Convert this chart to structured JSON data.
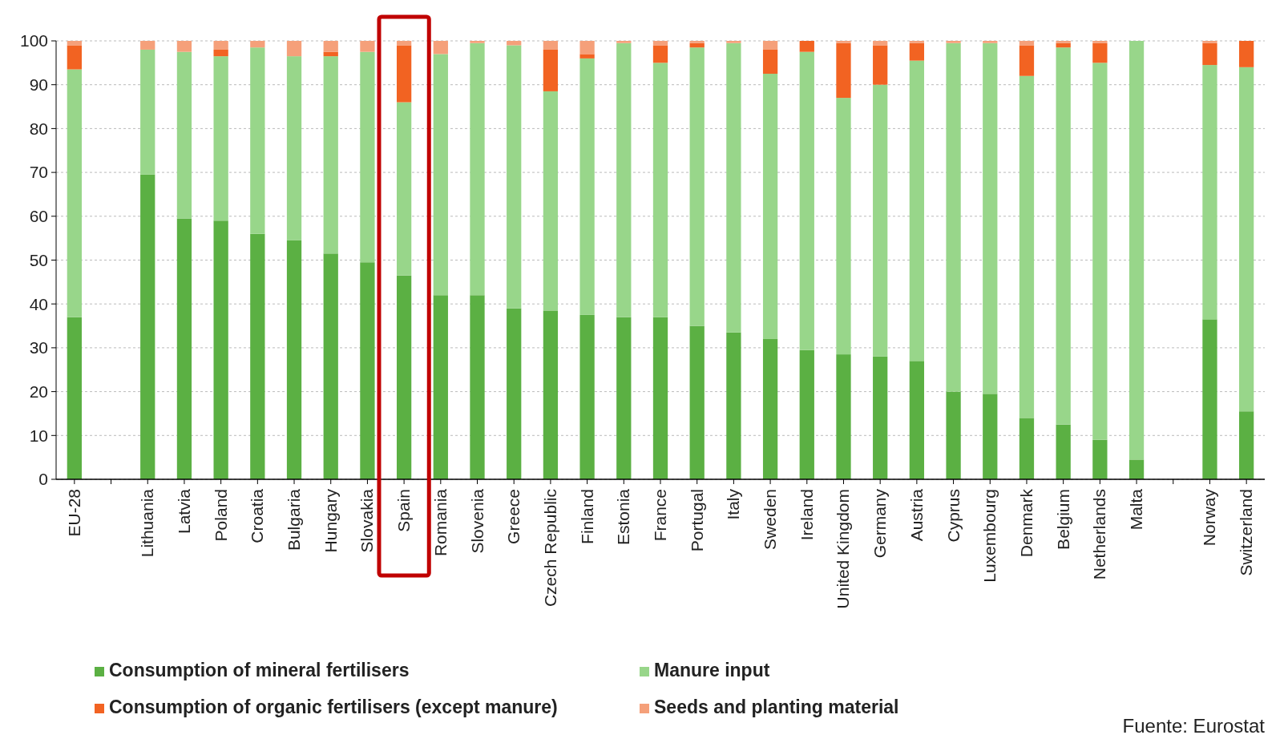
{
  "chart_data": {
    "type": "bar",
    "stacked": true,
    "categories": [
      "EU-28",
      null,
      "Lithuania",
      "Latvia",
      "Poland",
      "Croatia",
      "Bulgaria",
      "Hungary",
      "Slovakia",
      "Spain",
      "Romania",
      "Slovenia",
      "Greece",
      "Czech Republic",
      "Finland",
      "Estonia",
      "France",
      "Portugal",
      "Italy",
      "Sweden",
      "Ireland",
      "United Kingdom",
      "Germany",
      "Austria",
      "Cyprus",
      "Luxembourg",
      "Denmark",
      "Belgium",
      "Netherlands",
      "Malta",
      null,
      "Norway",
      "Switzerland"
    ],
    "series": [
      {
        "name": "Consumption of mineral fertilisers",
        "color": "#5bb043",
        "values": [
          37,
          null,
          69.5,
          59.5,
          59,
          56,
          54.5,
          51.5,
          49.5,
          46.5,
          42,
          42,
          39,
          38.5,
          37.5,
          37,
          37,
          35,
          33.5,
          32,
          29.5,
          28.5,
          28,
          27,
          20,
          19.5,
          14,
          12.5,
          9,
          4.5,
          null,
          36.5,
          15.5
        ]
      },
      {
        "name": "Manure input",
        "color": "#98d68a",
        "values": [
          56.5,
          null,
          28.5,
          38,
          37.5,
          42.5,
          42,
          45,
          48,
          39.5,
          55,
          57.5,
          60,
          50,
          58.5,
          62.5,
          58,
          63.5,
          66,
          60.5,
          68,
          58.5,
          62,
          68.5,
          79.5,
          80,
          78,
          86,
          86,
          95.5,
          null,
          58,
          78.5
        ]
      },
      {
        "name": "Consumption of organic fertilisers (except manure)",
        "color": "#f26322",
        "values": [
          5.5,
          null,
          0,
          0,
          1.5,
          0,
          0,
          1,
          0,
          13,
          0,
          0,
          0,
          9.5,
          1,
          0,
          4,
          1,
          0,
          5.5,
          2.5,
          12.5,
          9,
          4,
          0,
          0,
          7,
          1,
          4.5,
          0,
          null,
          5,
          6
        ]
      },
      {
        "name": "Seeds and planting material",
        "color": "#f5a07a",
        "values": [
          1,
          null,
          2,
          2.5,
          2,
          1.5,
          3.5,
          2.5,
          2.5,
          1,
          3,
          0.5,
          1,
          2,
          3,
          0.5,
          1,
          0.5,
          0.5,
          2,
          0,
          0.5,
          1,
          0.5,
          0.5,
          0.5,
          1,
          0.5,
          0.5,
          0,
          null,
          0.5,
          0
        ]
      }
    ],
    "ylim": [
      0,
      100
    ],
    "yticks": [
      0,
      10,
      20,
      30,
      40,
      50,
      60,
      70,
      80,
      90,
      100
    ],
    "grid": "y",
    "legend": "bottom",
    "annotations": [
      "Fuente: Eurostat"
    ]
  }
}
